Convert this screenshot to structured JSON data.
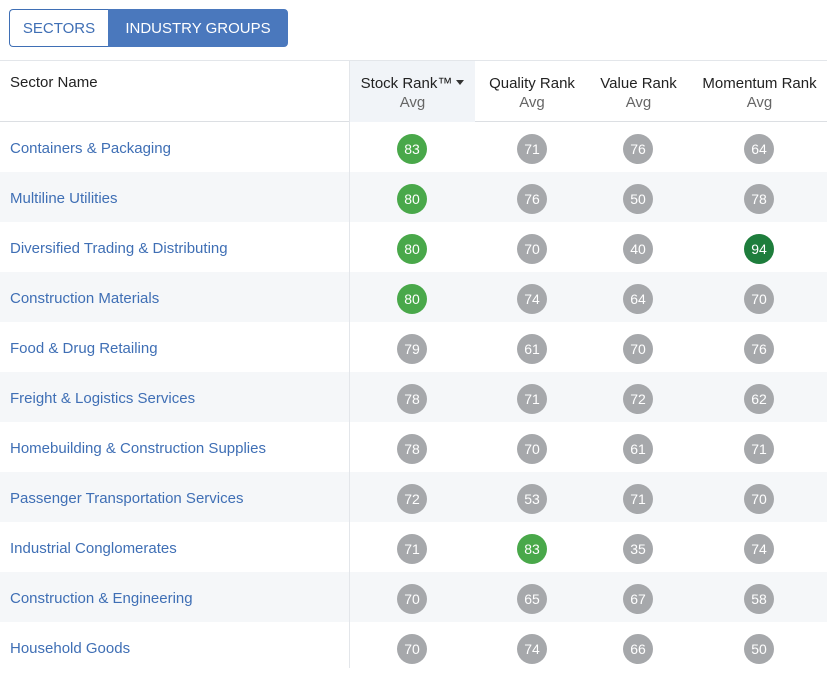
{
  "tabs": {
    "sectors": "SECTORS",
    "industry_groups": "INDUSTRY GROUPS"
  },
  "header": {
    "name": "Sector Name",
    "stock_rank": "Stock Rank™",
    "quality_rank": "Quality Rank",
    "value_rank": "Value Rank",
    "momentum_rank": "Momentum Rank",
    "avg": "Avg"
  },
  "colors": {
    "grey": "#a6a8ab",
    "green": "#49a84a",
    "dark_green": "#1e7d3c",
    "link": "#3f6fb5"
  },
  "rows": [
    {
      "name": "Containers & Packaging",
      "stock": "83",
      "quality": "71",
      "value": "76",
      "momentum": "64",
      "stock_c": "green",
      "quality_c": "grey",
      "value_c": "grey",
      "momentum_c": "grey"
    },
    {
      "name": "Multiline Utilities",
      "stock": "80",
      "quality": "76",
      "value": "50",
      "momentum": "78",
      "stock_c": "green",
      "quality_c": "grey",
      "value_c": "grey",
      "momentum_c": "grey"
    },
    {
      "name": "Diversified Trading & Distributing",
      "stock": "80",
      "quality": "70",
      "value": "40",
      "momentum": "94",
      "stock_c": "green",
      "quality_c": "grey",
      "value_c": "grey",
      "momentum_c": "dark_green"
    },
    {
      "name": "Construction Materials",
      "stock": "80",
      "quality": "74",
      "value": "64",
      "momentum": "70",
      "stock_c": "green",
      "quality_c": "grey",
      "value_c": "grey",
      "momentum_c": "grey"
    },
    {
      "name": "Food & Drug Retailing",
      "stock": "79",
      "quality": "61",
      "value": "70",
      "momentum": "76",
      "stock_c": "grey",
      "quality_c": "grey",
      "value_c": "grey",
      "momentum_c": "grey"
    },
    {
      "name": "Freight & Logistics Services",
      "stock": "78",
      "quality": "71",
      "value": "72",
      "momentum": "62",
      "stock_c": "grey",
      "quality_c": "grey",
      "value_c": "grey",
      "momentum_c": "grey"
    },
    {
      "name": "Homebuilding & Construction Supplies",
      "stock": "78",
      "quality": "70",
      "value": "61",
      "momentum": "71",
      "stock_c": "grey",
      "quality_c": "grey",
      "value_c": "grey",
      "momentum_c": "grey"
    },
    {
      "name": "Passenger Transportation Services",
      "stock": "72",
      "quality": "53",
      "value": "71",
      "momentum": "70",
      "stock_c": "grey",
      "quality_c": "grey",
      "value_c": "grey",
      "momentum_c": "grey"
    },
    {
      "name": "Industrial Conglomerates",
      "stock": "71",
      "quality": "83",
      "value": "35",
      "momentum": "74",
      "stock_c": "grey",
      "quality_c": "green",
      "value_c": "grey",
      "momentum_c": "grey"
    },
    {
      "name": "Construction & Engineering",
      "stock": "70",
      "quality": "65",
      "value": "67",
      "momentum": "58",
      "stock_c": "grey",
      "quality_c": "grey",
      "value_c": "grey",
      "momentum_c": "grey"
    },
    {
      "name": "Household Goods",
      "stock": "70",
      "quality": "74",
      "value": "66",
      "momentum": "50",
      "stock_c": "grey",
      "quality_c": "grey",
      "value_c": "grey",
      "momentum_c": "grey"
    }
  ]
}
